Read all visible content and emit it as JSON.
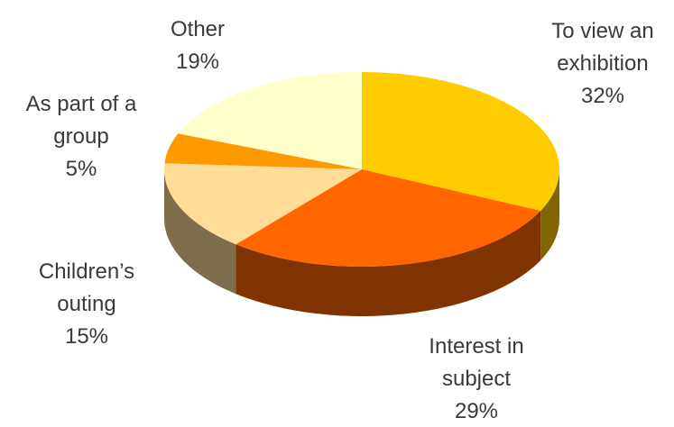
{
  "chart_data": {
    "type": "pie",
    "style": "3d",
    "title": "",
    "slices": [
      {
        "label_lines": [
          "To view an",
          "exhibition"
        ],
        "value": 32,
        "value_label": "32%",
        "color": "#FFCC00",
        "side_color": "#7F6600"
      },
      {
        "label_lines": [
          "Interest in",
          "subject"
        ],
        "value": 29,
        "value_label": "29%",
        "color": "#FF6600",
        "side_color": "#7F3300"
      },
      {
        "label_lines": [
          "Children’s",
          "outing"
        ],
        "value": 15,
        "value_label": "15%",
        "color": "#FFDD99",
        "side_color": "#7F6E4C"
      },
      {
        "label_lines": [
          "As part of a",
          "group"
        ],
        "value": 5,
        "value_label": "5%",
        "color": "#FF9900",
        "side_color": "#7F4C00"
      },
      {
        "label_lines": [
          "Other"
        ],
        "value": 19,
        "value_label": "19%",
        "color": "#FFFFCC",
        "side_color": "#7F7F66"
      }
    ]
  }
}
